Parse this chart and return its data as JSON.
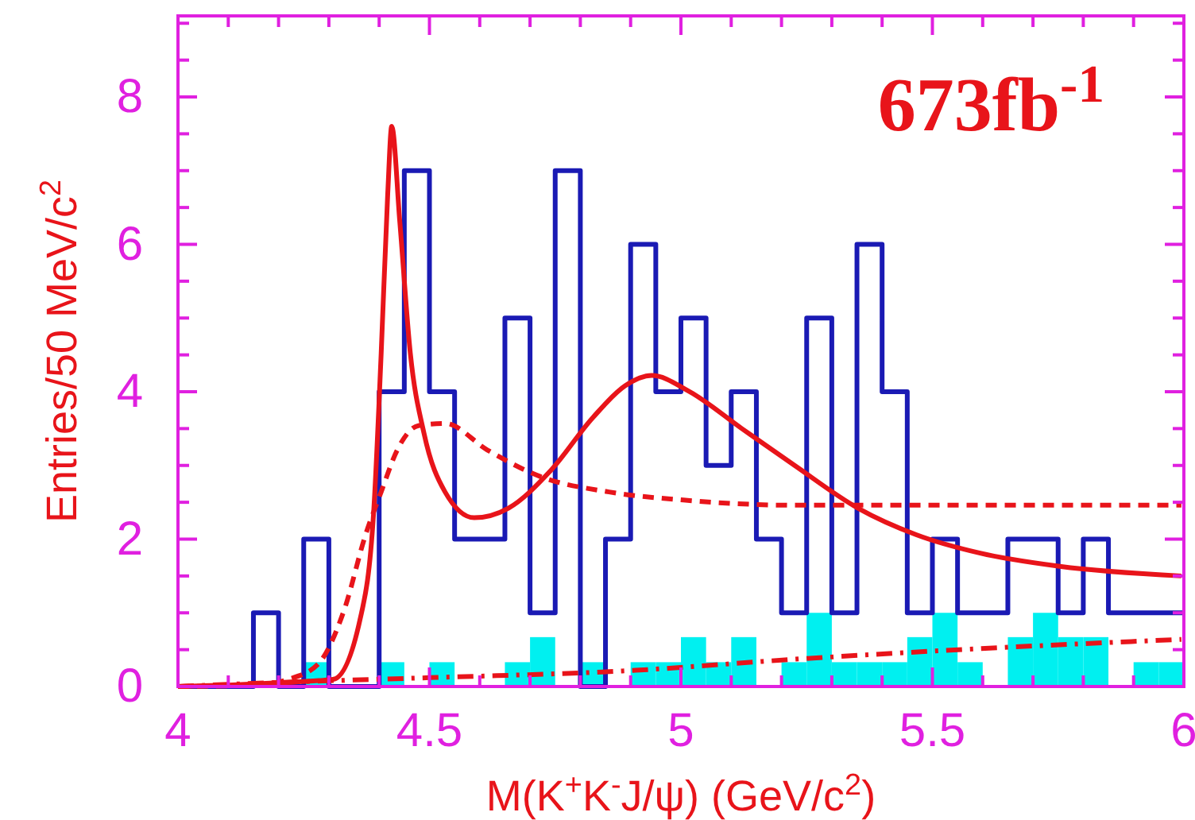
{
  "chart_data": {
    "type": "histogram",
    "xlabel": "M(K$^{+}$K$^{-}$J/ψ) (GeV/c$^{2}$)",
    "ylabel": "Entries/50 MeV/c$^{2}$",
    "annotations": [
      "673fb$^{-1}$"
    ],
    "bins": [
      4,
      4.05,
      4.1,
      4.15,
      4.2,
      4.25,
      4.3,
      4.35,
      4.4,
      4.45,
      4.5,
      4.55,
      4.6,
      4.65,
      4.7,
      4.75,
      4.8,
      4.85,
      4.9,
      4.95,
      5,
      5.05,
      5.1,
      5.15,
      5.2,
      5.25,
      5.3,
      5.35,
      5.4,
      5.45,
      5.5,
      5.55,
      5.6,
      5.65,
      5.7,
      5.75,
      5.8,
      5.85,
      5.9,
      5.95,
      6
    ],
    "xlim": [
      4,
      6
    ],
    "ylim": [
      0,
      9.1
    ],
    "xticks": [
      4,
      {
        "value": 4.1,
        "label": null
      },
      {
        "value": 4.2,
        "label": null
      },
      {
        "value": 4.3,
        "label": null
      },
      {
        "value": 4.4,
        "label": null
      },
      4.5,
      {
        "value": 4.6,
        "label": null
      },
      {
        "value": 4.7,
        "label": null
      },
      {
        "value": 4.8,
        "label": null
      },
      {
        "value": 4.9,
        "label": null
      },
      5,
      {
        "value": 5.1,
        "label": null
      },
      {
        "value": 5.2,
        "label": null
      },
      {
        "value": 5.3,
        "label": null
      },
      {
        "value": 5.4,
        "label": null
      },
      5.5,
      {
        "value": 5.6,
        "label": null
      },
      {
        "value": 5.7,
        "label": null
      },
      {
        "value": 5.8,
        "label": null
      },
      {
        "value": 5.9,
        "label": null
      },
      6
    ],
    "yticks": [
      0,
      {
        "value": 0.5,
        "label": null
      },
      {
        "value": 1,
        "label": null
      },
      {
        "value": 1.5,
        "label": null
      },
      2,
      {
        "value": 2.5,
        "label": null
      },
      {
        "value": 3,
        "label": null
      },
      {
        "value": 3.5,
        "label": null
      },
      4,
      {
        "value": 4.5,
        "label": null
      },
      {
        "value": 5,
        "label": null
      },
      {
        "value": 5.5,
        "label": null
      },
      6,
      {
        "value": 6.5,
        "label": null
      },
      {
        "value": 7,
        "label": null
      },
      {
        "value": 7.5,
        "label": null
      },
      8,
      {
        "value": 8.5,
        "label": null
      },
      {
        "value": 9,
        "label": null
      }
    ],
    "grid": false,
    "series": [
      {
        "color": "#00f0f0",
        "values": [
          0,
          0,
          0,
          0,
          0,
          0.33,
          0,
          0,
          0.33,
          0,
          0.33,
          0,
          0,
          0.33,
          0.67,
          0,
          0.33,
          0,
          0.33,
          0.33,
          0.67,
          0.33,
          0.67,
          0,
          0.33,
          1,
          0.33,
          0.33,
          0.33,
          0.67,
          1,
          0.33,
          0,
          0.67,
          1,
          0.67,
          0.67,
          0,
          0.33,
          0.33
        ]
      },
      {
        "type": "step",
        "color": "#1a1ab4",
        "x": [
          4,
          4.05,
          4.1,
          4.15,
          4.2,
          4.25,
          4.3,
          4.35,
          4.4,
          4.45,
          4.5,
          4.55,
          4.6,
          4.65,
          4.7,
          4.75,
          4.8,
          4.85,
          4.9,
          4.95,
          5,
          5.05,
          5.1,
          5.15,
          5.2,
          5.25,
          5.3,
          5.35,
          5.4,
          5.45,
          5.5,
          5.55,
          5.6,
          5.65,
          5.7,
          5.75,
          5.8,
          5.85,
          5.9,
          5.95,
          6
        ],
        "values": [
          0,
          0,
          0,
          1,
          0,
          2,
          0,
          0,
          4,
          7,
          4,
          2,
          2,
          5,
          1,
          7,
          0,
          2,
          6,
          4,
          5,
          3,
          4,
          2,
          1,
          5,
          1,
          6,
          4,
          1,
          2,
          1,
          1,
          2,
          2,
          1,
          2,
          1,
          1,
          1,
          1
        ]
      },
      {
        "type": "line",
        "color": "#e8141a",
        "line_style": "dashed",
        "x": [
          4,
          4.15,
          4.22,
          4.278,
          4.331,
          4.373,
          4.404,
          4.436,
          4.478,
          4.531,
          4.615,
          4.72,
          4.857,
          5.005,
          5.226,
          5.995
        ],
        "values": [
          0,
          0.02,
          0.1,
          0.3,
          1.05,
          2.06,
          2.64,
          3.21,
          3.54,
          3.57,
          3.21,
          2.85,
          2.64,
          2.53,
          2.46,
          2.46
        ]
      },
      {
        "type": "line",
        "color": "#e8141a",
        "line_style": "dashdot",
        "x": [
          4,
          4.1,
          4.31,
          4.5,
          4.91,
          5.226,
          5.5,
          5.995
        ],
        "values": [
          0,
          0.03,
          0.08,
          0.12,
          0.22,
          0.37,
          0.48,
          0.64
        ]
      },
      {
        "type": "line",
        "color": "#e8141a",
        "line_style": "solid",
        "x": [
          4,
          4.1,
          4.2,
          4.28,
          4.31,
          4.362,
          4.389,
          4.404,
          4.417,
          4.425,
          4.441,
          4.462,
          4.489,
          4.531,
          4.589,
          4.657,
          4.741,
          4.825,
          4.889,
          4.942,
          5.015,
          5.121,
          5.226,
          5.352,
          5.468,
          5.595,
          5.753,
          5.995
        ],
        "values": [
          0,
          0.02,
          0.05,
          0.08,
          0.1,
          0.91,
          2.36,
          4.52,
          6.68,
          7.6,
          6.31,
          4.52,
          3.44,
          2.64,
          2.29,
          2.42,
          2.93,
          3.65,
          4.08,
          4.22,
          4.01,
          3.5,
          3.0,
          2.42,
          2.06,
          1.81,
          1.63,
          1.5
        ]
      }
    ]
  }
}
